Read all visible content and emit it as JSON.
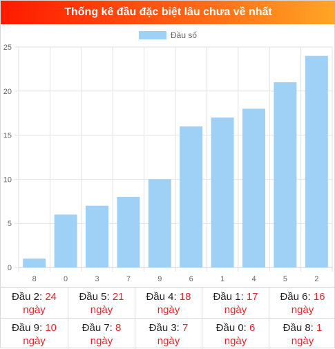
{
  "header": {
    "title": "Thống kê đầu đặc biệt lâu chưa về nhất"
  },
  "chart_data": {
    "type": "bar",
    "legend": {
      "label": "Đầu số",
      "placement": "top-center"
    },
    "categories": [
      "8",
      "0",
      "3",
      "7",
      "9",
      "6",
      "1",
      "4",
      "5",
      "2"
    ],
    "series": [
      {
        "name": "Đầu số",
        "values": [
          1,
          6,
          7,
          8,
          10,
          16,
          17,
          18,
          21,
          24
        ],
        "color": "#9fd0f5"
      }
    ],
    "yticks": [
      "0",
      "5",
      "10",
      "15",
      "20",
      "25"
    ],
    "ylim": [
      0,
      25
    ],
    "grid": true
  },
  "stats": {
    "unit": "ngày",
    "rows": [
      [
        {
          "label": "Đầu 2:",
          "value": "24"
        },
        {
          "label": "Đầu 5:",
          "value": "21"
        },
        {
          "label": "Đầu 4:",
          "value": "18"
        },
        {
          "label": "Đầu 1:",
          "value": "17"
        },
        {
          "label": "Đầu 6:",
          "value": "16"
        }
      ],
      [
        {
          "label": "Đầu 9:",
          "value": "10"
        },
        {
          "label": "Đầu 7:",
          "value": "8"
        },
        {
          "label": "Đầu 3:",
          "value": "7"
        },
        {
          "label": "Đầu 0:",
          "value": "6"
        },
        {
          "label": "Đầu 8:",
          "value": "1"
        }
      ]
    ]
  }
}
